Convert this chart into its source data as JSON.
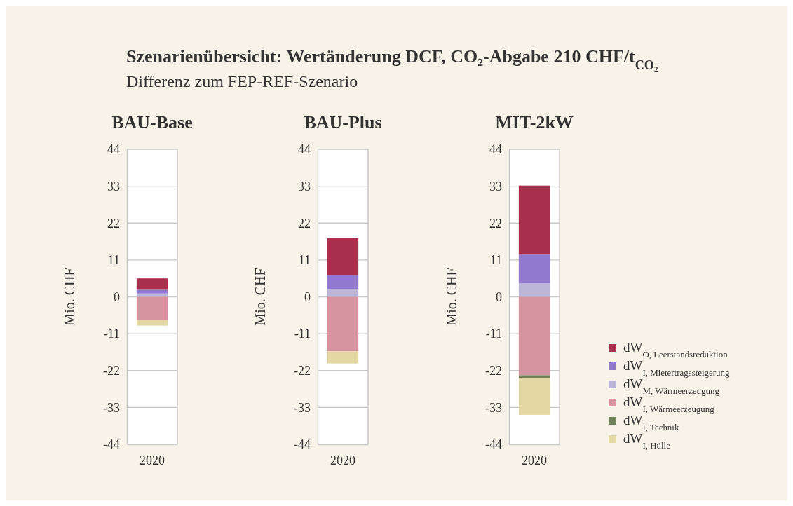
{
  "chart_data": [
    {
      "type": "other",
      "title": "Szenarienübersicht: Wertänderung DCF, CO₂-Abgabe 210 CHF/t$_{CO₂}$",
      "subtitle": "Differenz zum FEP-REF-Szenario"
    },
    {
      "type": "bar",
      "stacked": true,
      "title": "BAU-Base",
      "ylabel": "Mio. CHF",
      "categories": [
        "2020"
      ],
      "ylim": [
        -44,
        44
      ],
      "yticks": [
        -44,
        -33,
        -22,
        -11,
        0,
        11,
        22,
        33,
        44
      ],
      "grid": "y",
      "series": [
        {
          "color": "#bcb6d9",
          "values": [
            1.0
          ]
        },
        {
          "color": "#9179cf",
          "values": [
            1.1
          ]
        },
        {
          "color": "#a8304c",
          "values": [
            3.4
          ]
        },
        {
          "color": "#d693a0",
          "values": [
            -6.9
          ]
        },
        {
          "color": "#6f8158",
          "values": [
            0
          ]
        },
        {
          "color": "#e3d7a4",
          "values": [
            -1.7
          ]
        }
      ]
    },
    {
      "type": "bar",
      "stacked": true,
      "title": "BAU-Plus",
      "ylabel": "Mio. CHF",
      "categories": [
        "2020"
      ],
      "ylim": [
        -44,
        44
      ],
      "yticks": [
        -44,
        -33,
        -22,
        -11,
        0,
        11,
        22,
        33,
        44
      ],
      "grid": "y",
      "series": [
        {
          "color": "#bcb6d9",
          "values": [
            2.3
          ]
        },
        {
          "color": "#9179cf",
          "values": [
            4.2
          ]
        },
        {
          "color": "#a8304c",
          "values": [
            11.0
          ]
        },
        {
          "color": "#d693a0",
          "values": [
            -16.3
          ]
        },
        {
          "color": "#6f8158",
          "values": [
            0
          ]
        },
        {
          "color": "#e3d7a4",
          "values": [
            -3.6
          ]
        }
      ]
    },
    {
      "type": "bar",
      "stacked": true,
      "title": "MIT-2kW",
      "ylabel": "Mio. CHF",
      "categories": [
        "2020"
      ],
      "ylim": [
        -44,
        44
      ],
      "yticks": [
        -44,
        -33,
        -22,
        -11,
        0,
        11,
        22,
        33,
        44
      ],
      "grid": "y",
      "legend": "right",
      "series": [
        {
          "name": "dW$_{M, Wärmeerzeugung}$",
          "color": "#bcb6d9",
          "values": [
            4.0
          ]
        },
        {
          "name": "dW$_{I, Mietertragssteigerung}$",
          "color": "#9179cf",
          "values": [
            8.6
          ]
        },
        {
          "name": "dW$_{O, Leerstandsreduktion}$",
          "color": "#a8304c",
          "values": [
            20.6
          ]
        },
        {
          "name": "dW$_{I, Wärmeerzeugung}$",
          "color": "#d693a0",
          "values": [
            -23.4
          ]
        },
        {
          "name": "dW$_{I, Technik}$",
          "color": "#6f8158",
          "values": [
            -0.8
          ]
        },
        {
          "name": "dW$_{I, Hülle}$",
          "color": "#e3d7a4",
          "values": [
            -11.0
          ]
        }
      ]
    }
  ]
}
